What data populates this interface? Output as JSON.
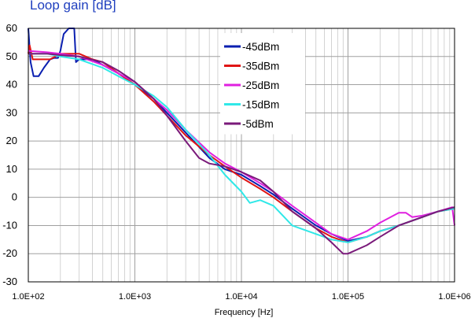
{
  "chart_data": {
    "type": "line",
    "title": "Loop gain [dB]",
    "xlabel": "Frequency [Hz]",
    "ylabel": "",
    "x_scale": "log",
    "xlim": [
      100,
      1000000
    ],
    "ylim": [
      -30,
      60
    ],
    "x_ticks": [
      "1.0E+02",
      "1.0E+03",
      "1.0E+04",
      "1.0E+05",
      "1.0E+06"
    ],
    "y_ticks": [
      "60",
      "50",
      "40",
      "30",
      "20",
      "10",
      "0",
      "-10",
      "-20",
      "-30"
    ],
    "grid": true,
    "legend_position": "top-center",
    "series": [
      {
        "name": "-45dBm",
        "color": "#0a1fb0",
        "points": [
          [
            100,
            60
          ],
          [
            105,
            48
          ],
          [
            112,
            43
          ],
          [
            125,
            43
          ],
          [
            140,
            46
          ],
          [
            160,
            49
          ],
          [
            175,
            49.5
          ],
          [
            190,
            49.5
          ],
          [
            200,
            52
          ],
          [
            215,
            58
          ],
          [
            240,
            60
          ],
          [
            270,
            60
          ],
          [
            280,
            48
          ],
          [
            300,
            49
          ],
          [
            350,
            49
          ],
          [
            400,
            49
          ],
          [
            500,
            47
          ],
          [
            700,
            44
          ],
          [
            1000,
            40
          ],
          [
            1500,
            35
          ],
          [
            2000,
            30
          ],
          [
            3000,
            23
          ],
          [
            5000,
            14
          ],
          [
            7000,
            10
          ],
          [
            10000,
            8
          ],
          [
            15000,
            4
          ],
          [
            20000,
            1
          ],
          [
            30000,
            -4
          ],
          [
            50000,
            -10
          ],
          [
            70000,
            -13
          ],
          [
            100000,
            -15.5
          ],
          [
            150000,
            -14
          ],
          [
            200000,
            -12
          ],
          [
            300000,
            -10
          ],
          [
            500000,
            -7
          ],
          [
            700000,
            -5
          ],
          [
            1000000,
            -3.5
          ]
        ]
      },
      {
        "name": "-35dBm",
        "color": "#e01515",
        "points": [
          [
            100,
            51
          ],
          [
            103,
            54
          ],
          [
            110,
            49
          ],
          [
            140,
            49
          ],
          [
            160,
            49
          ],
          [
            200,
            51
          ],
          [
            300,
            51
          ],
          [
            400,
            49
          ],
          [
            500,
            48
          ],
          [
            700,
            44
          ],
          [
            1000,
            40
          ],
          [
            1500,
            34
          ],
          [
            2000,
            29
          ],
          [
            3000,
            22
          ],
          [
            5000,
            15
          ],
          [
            7000,
            11
          ],
          [
            10000,
            7
          ],
          [
            15000,
            3
          ],
          [
            20000,
            0
          ],
          [
            30000,
            -5
          ],
          [
            50000,
            -11
          ],
          [
            70000,
            -14
          ],
          [
            100000,
            -16
          ],
          [
            150000,
            -14
          ],
          [
            200000,
            -12
          ],
          [
            300000,
            -10
          ],
          [
            500000,
            -7
          ],
          [
            700000,
            -5
          ],
          [
            1000000,
            -4
          ]
        ]
      },
      {
        "name": "-25dBm",
        "color": "#e020e0",
        "points": [
          [
            100,
            52
          ],
          [
            150,
            51.5
          ],
          [
            200,
            51
          ],
          [
            300,
            50
          ],
          [
            500,
            47
          ],
          [
            700,
            44
          ],
          [
            1000,
            41
          ],
          [
            1500,
            35
          ],
          [
            2000,
            31
          ],
          [
            3000,
            24
          ],
          [
            5000,
            16
          ],
          [
            7000,
            12
          ],
          [
            10000,
            9
          ],
          [
            15000,
            5
          ],
          [
            20000,
            2
          ],
          [
            30000,
            -3
          ],
          [
            50000,
            -9
          ],
          [
            70000,
            -13
          ],
          [
            100000,
            -15
          ],
          [
            150000,
            -12
          ],
          [
            200000,
            -9
          ],
          [
            300000,
            -5.5
          ],
          [
            350000,
            -5.5
          ],
          [
            400000,
            -7
          ],
          [
            500000,
            -6.5
          ],
          [
            700000,
            -5
          ],
          [
            950000,
            -3.5
          ],
          [
            1000000,
            -10
          ]
        ]
      },
      {
        "name": "-15dBm",
        "color": "#30e8e8",
        "points": [
          [
            100,
            51
          ],
          [
            150,
            51
          ],
          [
            200,
            50
          ],
          [
            300,
            49
          ],
          [
            500,
            46
          ],
          [
            700,
            43
          ],
          [
            1000,
            40
          ],
          [
            1500,
            36
          ],
          [
            2000,
            32
          ],
          [
            3000,
            24
          ],
          [
            5000,
            15
          ],
          [
            7000,
            8
          ],
          [
            10000,
            2
          ],
          [
            12000,
            -2
          ],
          [
            15000,
            -1
          ],
          [
            20000,
            -3
          ],
          [
            30000,
            -10
          ],
          [
            50000,
            -13
          ],
          [
            70000,
            -15
          ],
          [
            100000,
            -16
          ],
          [
            150000,
            -14
          ],
          [
            200000,
            -12
          ],
          [
            300000,
            -10
          ],
          [
            500000,
            -7
          ],
          [
            700000,
            -5
          ],
          [
            1000000,
            -4
          ]
        ]
      },
      {
        "name": "-5dBm",
        "color": "#7a1a7a",
        "points": [
          [
            100,
            51
          ],
          [
            150,
            51
          ],
          [
            200,
            50.5
          ],
          [
            300,
            50
          ],
          [
            500,
            48
          ],
          [
            700,
            45
          ],
          [
            1000,
            41
          ],
          [
            1500,
            35
          ],
          [
            2000,
            29
          ],
          [
            3000,
            20
          ],
          [
            4000,
            14
          ],
          [
            5000,
            12
          ],
          [
            7000,
            11
          ],
          [
            10000,
            9
          ],
          [
            15000,
            6
          ],
          [
            20000,
            2
          ],
          [
            30000,
            -5
          ],
          [
            50000,
            -11
          ],
          [
            70000,
            -16
          ],
          [
            90000,
            -20
          ],
          [
            100000,
            -20
          ],
          [
            150000,
            -17
          ],
          [
            200000,
            -14
          ],
          [
            300000,
            -10
          ],
          [
            500000,
            -7
          ],
          [
            700000,
            -5
          ],
          [
            1000000,
            -3.5
          ]
        ]
      }
    ]
  }
}
